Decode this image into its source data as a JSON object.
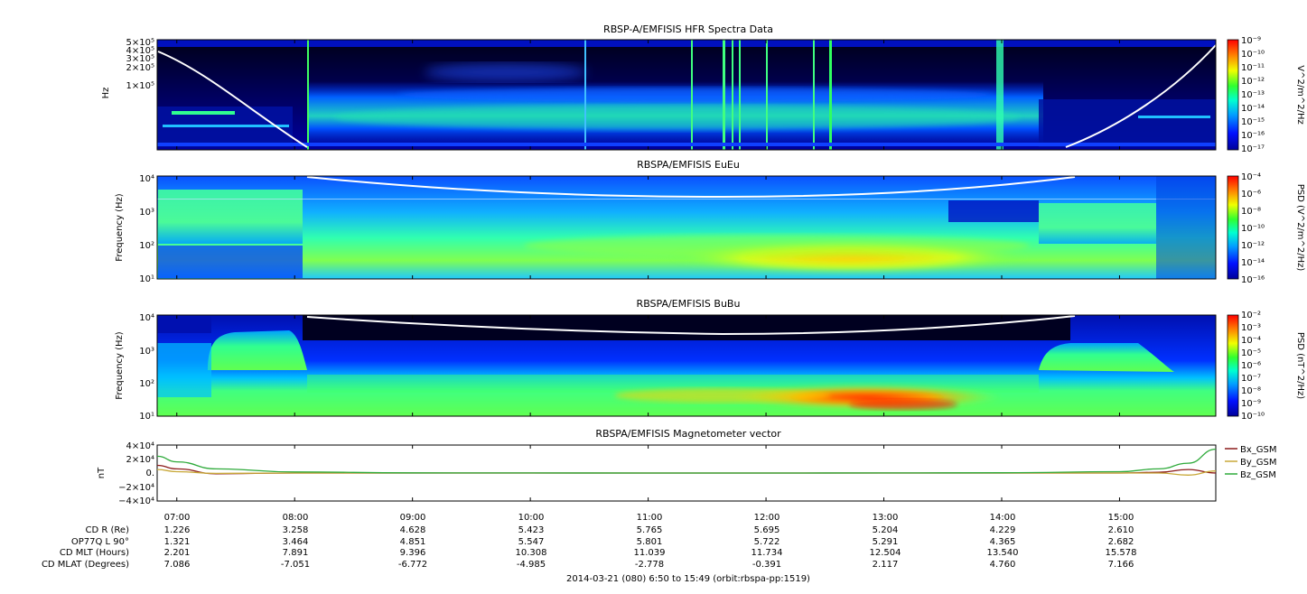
{
  "chart_data": [
    {
      "type": "heatmap",
      "title": "RBSP-A/EMFISIS  HFR Spectra Data",
      "ylabel": "Hz",
      "yticks": [
        "5×10⁵",
        "4×10⁵",
        "3×10⁵",
        "2×10⁵",
        "1×10⁵"
      ],
      "colorbar": {
        "label": "V^2/m^2/Hz",
        "ticks": [
          "10⁻⁹",
          "10⁻¹⁰",
          "10⁻¹¹",
          "10⁻¹²",
          "10⁻¹³",
          "10⁻¹⁴",
          "10⁻¹⁵",
          "10⁻¹⁶",
          "10⁻¹⁷"
        ]
      },
      "scale": "log"
    },
    {
      "type": "heatmap",
      "title": "RBSPA/EMFISIS  EuEu",
      "ylabel": "Frequency (Hz)",
      "yticks": [
        "10⁴",
        "10³",
        "10²",
        "10¹"
      ],
      "ylim": [
        10,
        10000
      ],
      "colorbar": {
        "label": "PSD (V^2/m^2/Hz)",
        "ticks": [
          "10⁻⁴",
          "10⁻⁶",
          "10⁻⁸",
          "10⁻¹⁰",
          "10⁻¹²",
          "10⁻¹⁴",
          "10⁻¹⁶"
        ]
      },
      "scale": "log"
    },
    {
      "type": "heatmap",
      "title": "RBSPA/EMFISIS  BuBu",
      "ylabel": "Frequency (Hz)",
      "yticks": [
        "10⁴",
        "10³",
        "10²",
        "10¹"
      ],
      "ylim": [
        10,
        10000
      ],
      "colorbar": {
        "label": "PSD (nT^2/Hz)",
        "ticks": [
          "10⁻²",
          "10⁻³",
          "10⁻⁴",
          "10⁻⁵",
          "10⁻⁶",
          "10⁻⁷",
          "10⁻⁸",
          "10⁻⁹",
          "10⁻¹⁰"
        ]
      },
      "scale": "log"
    },
    {
      "type": "line",
      "title": "RBSPA/EMFISIS  Magnetometer vector",
      "ylabel": "nT",
      "ylim": [
        -40000,
        40000
      ],
      "yticks": [
        "4×10⁴",
        "2×10⁴",
        "0.",
        "−2×10⁴",
        "−4×10⁴"
      ],
      "x": [
        "06:50",
        "07:00",
        "07:20",
        "08:00",
        "09:00",
        "10:00",
        "11:00",
        "12:00",
        "13:00",
        "14:00",
        "15:00",
        "15:20",
        "15:35",
        "15:49"
      ],
      "series": [
        {
          "name": "Bx_GSM",
          "color": "#8b1a1a",
          "values": [
            11000,
            6000,
            -1000,
            0,
            0,
            0,
            0,
            0,
            0,
            0,
            0,
            1000,
            5000,
            0
          ]
        },
        {
          "name": "By_GSM",
          "color": "#c8a838",
          "values": [
            5000,
            2000,
            -500,
            0,
            0,
            0,
            0,
            0,
            0,
            0,
            0,
            0,
            -3000,
            3000
          ]
        },
        {
          "name": "Bz_GSM",
          "color": "#2eaa3a",
          "values": [
            24000,
            16000,
            6000,
            1500,
            300,
            100,
            50,
            50,
            100,
            400,
            2000,
            6000,
            14000,
            34000
          ]
        }
      ]
    }
  ],
  "time_ticks": [
    "07:00",
    "08:00",
    "09:00",
    "10:00",
    "11:00",
    "12:00",
    "13:00",
    "14:00",
    "15:00"
  ],
  "ephemeris": {
    "labels": [
      "CD R (Re)",
      "OP77Q L 90°",
      "CD MLT (Hours)",
      "CD MLAT (Degrees)"
    ],
    "rows": [
      [
        "1.226",
        "3.258",
        "4.628",
        "5.423",
        "5.765",
        "5.695",
        "5.204",
        "4.229",
        "2.610"
      ],
      [
        "1.321",
        "3.464",
        "4.851",
        "5.547",
        "5.801",
        "5.722",
        "5.291",
        "4.365",
        "2.682"
      ],
      [
        "2.201",
        "7.891",
        "9.396",
        "10.308",
        "11.039",
        "11.734",
        "12.504",
        "13.540",
        "15.578"
      ],
      [
        "7.086",
        "-7.051",
        "-6.772",
        "-4.985",
        "-2.778",
        "-0.391",
        "2.117",
        "4.760",
        "7.166"
      ]
    ]
  },
  "footer": "2014-03-21 (080) 6:50 to 15:49 (orbit:rbspa-pp:1519)"
}
